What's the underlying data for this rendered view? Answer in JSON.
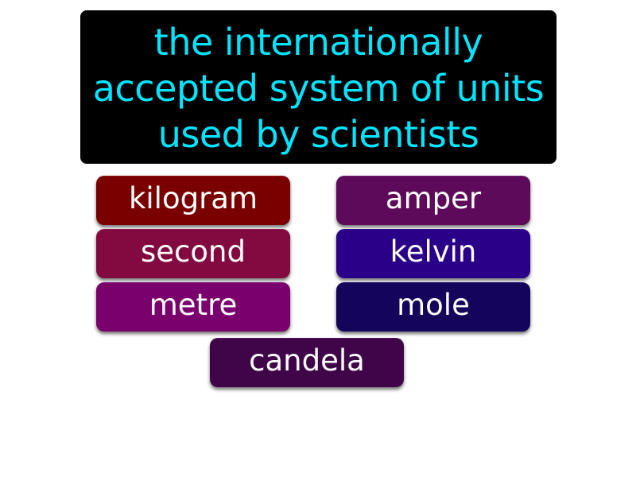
{
  "question": {
    "text": "the internationally accepted system of units used by scientists",
    "text_color": "#00e5ff",
    "background": "#000000"
  },
  "answers": [
    {
      "label": "kilogram",
      "color": "#7a0000"
    },
    {
      "label": "amper",
      "color": "#5e0a5a"
    },
    {
      "label": "second",
      "color": "#830a40"
    },
    {
      "label": "kelvin",
      "color": "#2a0088"
    },
    {
      "label": "metre",
      "color": "#7a006e"
    },
    {
      "label": "mole",
      "color": "#14045a"
    },
    {
      "label": "candela",
      "color": "#400548"
    }
  ]
}
